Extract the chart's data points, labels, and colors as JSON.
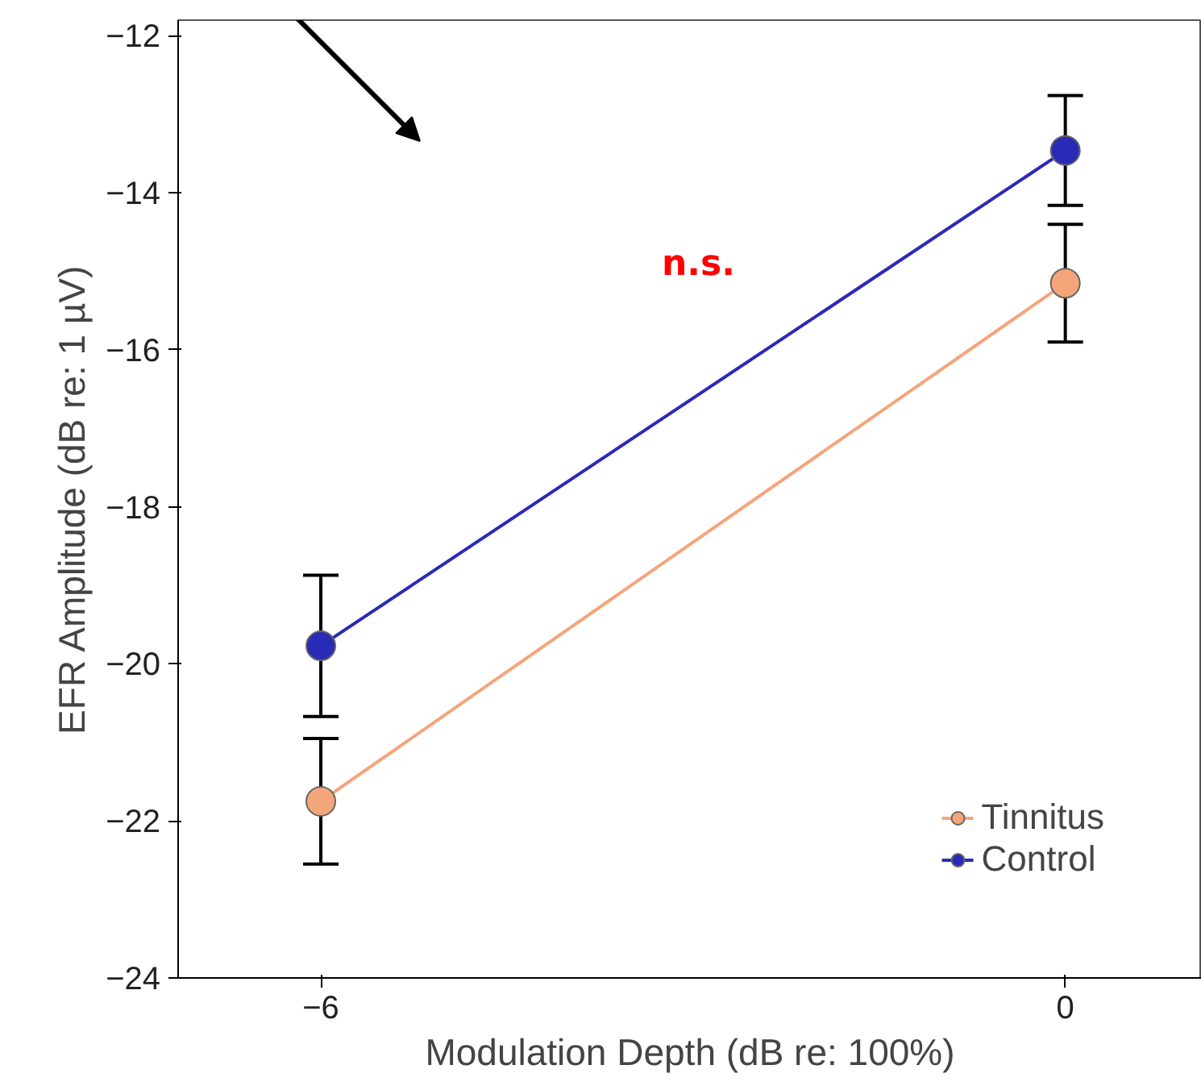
{
  "chart_data": {
    "type": "line",
    "xlabel": "Modulation Depth (dB re: 100%)",
    "ylabel": "EFR Amplitude (dB re: 1 µV)",
    "x": [
      -6,
      0
    ],
    "series": [
      {
        "name": "Tinnitus",
        "color": "#f4a57a",
        "values": [
          -21.75,
          -15.15
        ],
        "errors": [
          0.8,
          0.75
        ]
      },
      {
        "name": "Control",
        "color": "#2a2ab8",
        "values": [
          -19.77,
          -13.46
        ],
        "errors": [
          0.9,
          0.7
        ]
      }
    ],
    "xlim": [
      -7.15,
      1.1
    ],
    "ylim": [
      -24,
      -11.8
    ],
    "xticks": [
      -6,
      0
    ],
    "yticks": [
      -24,
      -22,
      -20,
      -18,
      -16,
      -14,
      -12
    ],
    "annotations": [
      "n.s."
    ],
    "legend": "bottom right",
    "grid": false,
    "marker": "circle"
  }
}
